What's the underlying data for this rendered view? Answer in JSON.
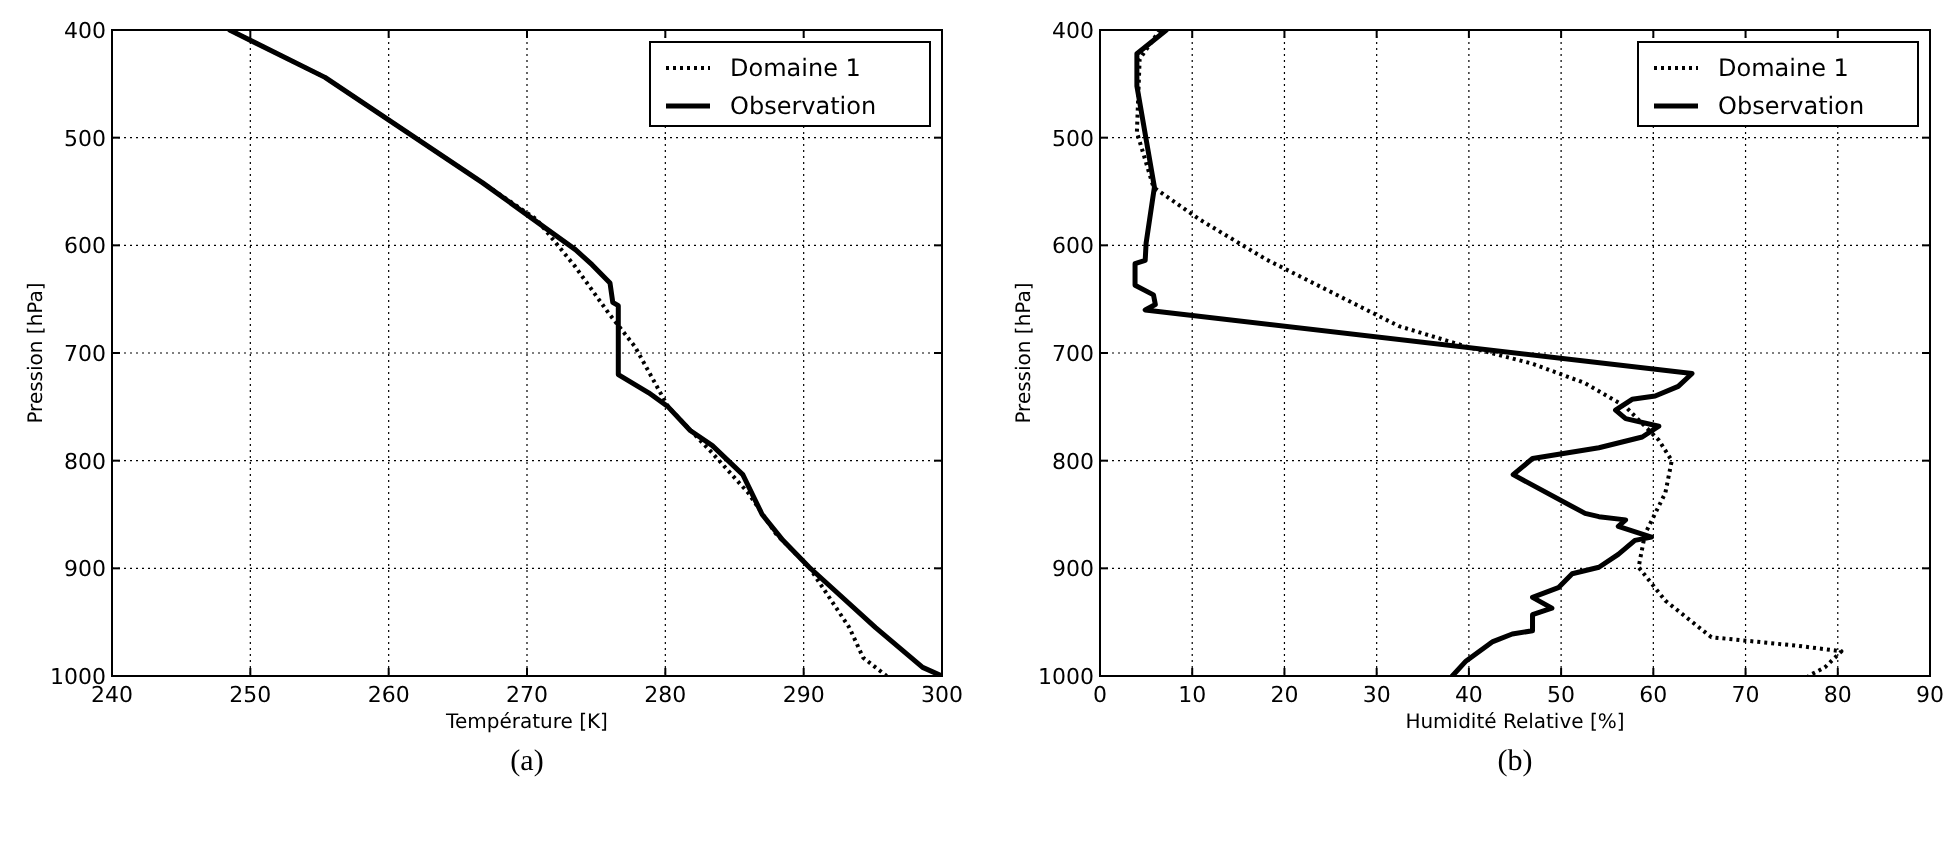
{
  "chart_data": [
    {
      "type": "line",
      "xlabel": "Température [K]",
      "ylabel": "Pression [hPa]",
      "xlim": [
        240,
        300
      ],
      "xticks": [
        240,
        250,
        260,
        270,
        280,
        290,
        300
      ],
      "ylim": [
        1000,
        400
      ],
      "yticks": [
        400,
        500,
        600,
        700,
        800,
        900,
        1000
      ],
      "grid": true,
      "legend": "top right",
      "annotations": [
        "(a)"
      ],
      "series": [
        {
          "name": "Domaine 1",
          "color": "#000000",
          "line_style": "dotted",
          "x": [
            248.5,
            255.4,
            266.8,
            270.7,
            273.5,
            275.9,
            277.8,
            280.2,
            283.4,
            286.0,
            288.0,
            290.4,
            293.3,
            294.3,
            296.0
          ],
          "values": [
            400,
            444,
            542,
            576,
            620,
            663,
            694,
            750,
            793,
            830,
            868,
            899,
            955,
            983,
            1000
          ]
        },
        {
          "name": "Observation",
          "color": "#000000",
          "line_style": "solid",
          "x": [
            248.5,
            255.4,
            266.8,
            273.5,
            274.7,
            276.0,
            276.2,
            276.6,
            276.6,
            278.8,
            280.2,
            281.8,
            283.4,
            285.6,
            287.0,
            288.5,
            290.4,
            295.2,
            298.6,
            300
          ],
          "values": [
            400,
            444,
            542,
            604,
            618,
            635,
            653,
            656,
            720,
            737,
            750,
            772,
            786,
            813,
            850,
            874,
            899,
            955,
            992,
            1000
          ]
        }
      ]
    },
    {
      "type": "line",
      "xlabel": "Humidité Relative [%]",
      "ylabel": "Pression [hPa]",
      "xlim": [
        0,
        90
      ],
      "xticks": [
        0,
        10,
        20,
        30,
        40,
        50,
        60,
        70,
        80,
        90
      ],
      "ylim": [
        1000,
        400
      ],
      "yticks": [
        400,
        500,
        600,
        700,
        800,
        900,
        1000
      ],
      "grid": true,
      "legend": "top right",
      "annotations": [
        "(b)"
      ],
      "series": [
        {
          "name": "Domaine 1",
          "color": "#000000",
          "line_style": "dotted",
          "x": [
            6.5,
            4.3,
            4.0,
            5.8,
            10.8,
            18.0,
            25.2,
            32.4,
            39.7,
            46.9,
            52.6,
            57.0,
            60.6,
            62.0,
            61.3,
            59.1,
            58.4,
            61.3,
            66.3,
            75.7,
            80.4,
            78.6,
            76.8
          ],
          "values": [
            400,
            427,
            495,
            546,
            576,
            613,
            644,
            675,
            694,
            710,
            728,
            750,
            781,
            800,
            830,
            868,
            899,
            930,
            964,
            972,
            977,
            992,
            1000
          ]
        },
        {
          "name": "Observation",
          "color": "#000000",
          "line_style": "solid",
          "x": [
            7.2,
            4.0,
            4.0,
            5.9,
            5.0,
            4.9,
            3.8,
            3.8,
            5.8,
            6.0,
            4.9,
            64.2,
            62.7,
            60.2,
            57.7,
            55.9,
            57.0,
            60.6,
            58.8,
            54.1,
            46.9,
            44.8,
            52.6,
            54.1,
            57.0,
            56.2,
            59.8,
            58.0,
            56.2,
            54.1,
            51.2,
            49.7,
            46.9,
            49.0,
            46.9,
            46.9,
            44.7,
            42.6,
            39.7,
            38.2
          ],
          "values": [
            400,
            422,
            452,
            546,
            598,
            614,
            617,
            637,
            646,
            655,
            660,
            719,
            731,
            740,
            743,
            753,
            761,
            768,
            778,
            788,
            798,
            813,
            849,
            852,
            855,
            861,
            871,
            874,
            887,
            899,
            905,
            918,
            927,
            937,
            943,
            958,
            961,
            968,
            986,
            1000
          ]
        }
      ]
    }
  ]
}
